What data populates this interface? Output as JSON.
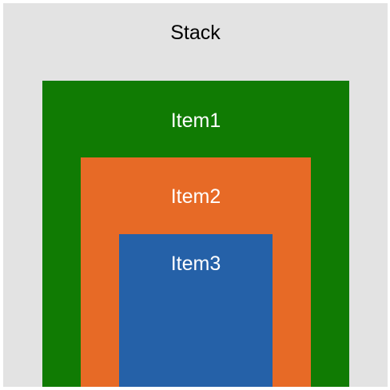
{
  "stack": {
    "label": "Stack",
    "color": "#e3e3e3",
    "item1": {
      "label": "Item1",
      "color": "#107b03",
      "item2": {
        "label": "Item2",
        "color": "#e76a26",
        "item3": {
          "label": "Item3",
          "color": "#2561a8"
        }
      }
    }
  }
}
